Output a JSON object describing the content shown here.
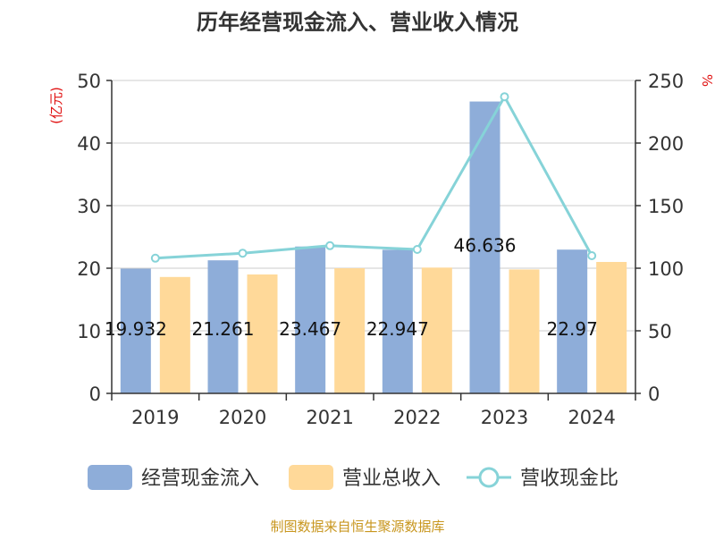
{
  "chart_data": {
    "type": "bar",
    "title": "历年经营现金流入、营业收入情况",
    "categories": [
      "2019",
      "2020",
      "2021",
      "2022",
      "2023",
      "2024"
    ],
    "ylabel_left": "(亿元)",
    "ylabel_right": "%",
    "ylim_left": [
      0,
      50
    ],
    "ylim_right": [
      0,
      250
    ],
    "yticks_left": [
      0,
      10,
      20,
      30,
      40,
      50
    ],
    "yticks_right": [
      0,
      50,
      100,
      150,
      200,
      250
    ],
    "grid": true,
    "legend_position": "bottom",
    "series": [
      {
        "name": "经营现金流入",
        "kind": "bar",
        "axis": "left",
        "color": "#8eadd9",
        "values": [
          19.932,
          21.261,
          23.467,
          22.947,
          46.636,
          22.97
        ],
        "labels": [
          "19.932",
          "21.261",
          "23.467",
          "22.947",
          "46.636",
          "22.97"
        ]
      },
      {
        "name": "营业总收入",
        "kind": "bar",
        "axis": "left",
        "color": "#ffd999",
        "values": [
          18.6,
          19.0,
          20.0,
          20.1,
          19.8,
          21.0
        ]
      },
      {
        "name": "营收现金比",
        "kind": "line",
        "axis": "right",
        "color": "#86d3d8",
        "values": [
          108,
          112,
          118,
          115,
          237,
          110
        ]
      }
    ],
    "source": "制图数据来自恒生聚源数据库"
  }
}
